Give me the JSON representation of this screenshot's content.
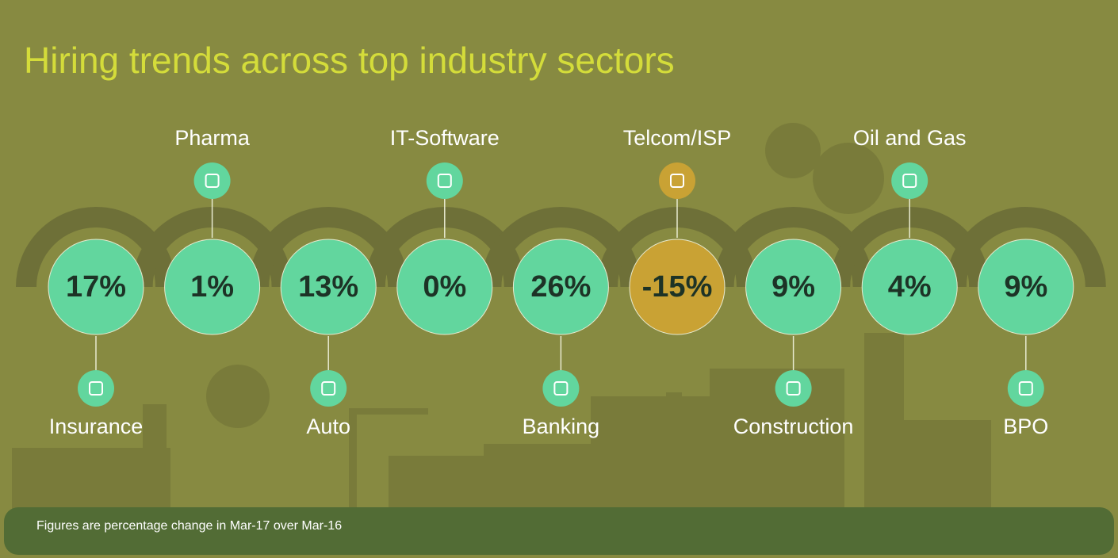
{
  "title": "Hiring trends across top industry sectors",
  "note": "Figures are percentage change in Mar-17 over Mar-16",
  "sectors": [
    {
      "label": "Insurance",
      "value": "17%",
      "color": "#62d69e"
    },
    {
      "label": "Pharma",
      "value": "1%",
      "color": "#62d69e"
    },
    {
      "label": "Auto",
      "value": "13%",
      "color": "#62d69e"
    },
    {
      "label": "IT-Software",
      "value": "0%",
      "color": "#62d69e"
    },
    {
      "label": "Banking",
      "value": "26%",
      "color": "#62d69e"
    },
    {
      "label": "Telcom/ISP",
      "value": "-15%",
      "color": "#c9a234"
    },
    {
      "label": "Construction",
      "value": "9%",
      "color": "#62d69e"
    },
    {
      "label": "Oil and Gas",
      "value": "4%",
      "color": "#62d69e"
    },
    {
      "label": "BPO",
      "value": "9%",
      "color": "#62d69e"
    }
  ]
}
